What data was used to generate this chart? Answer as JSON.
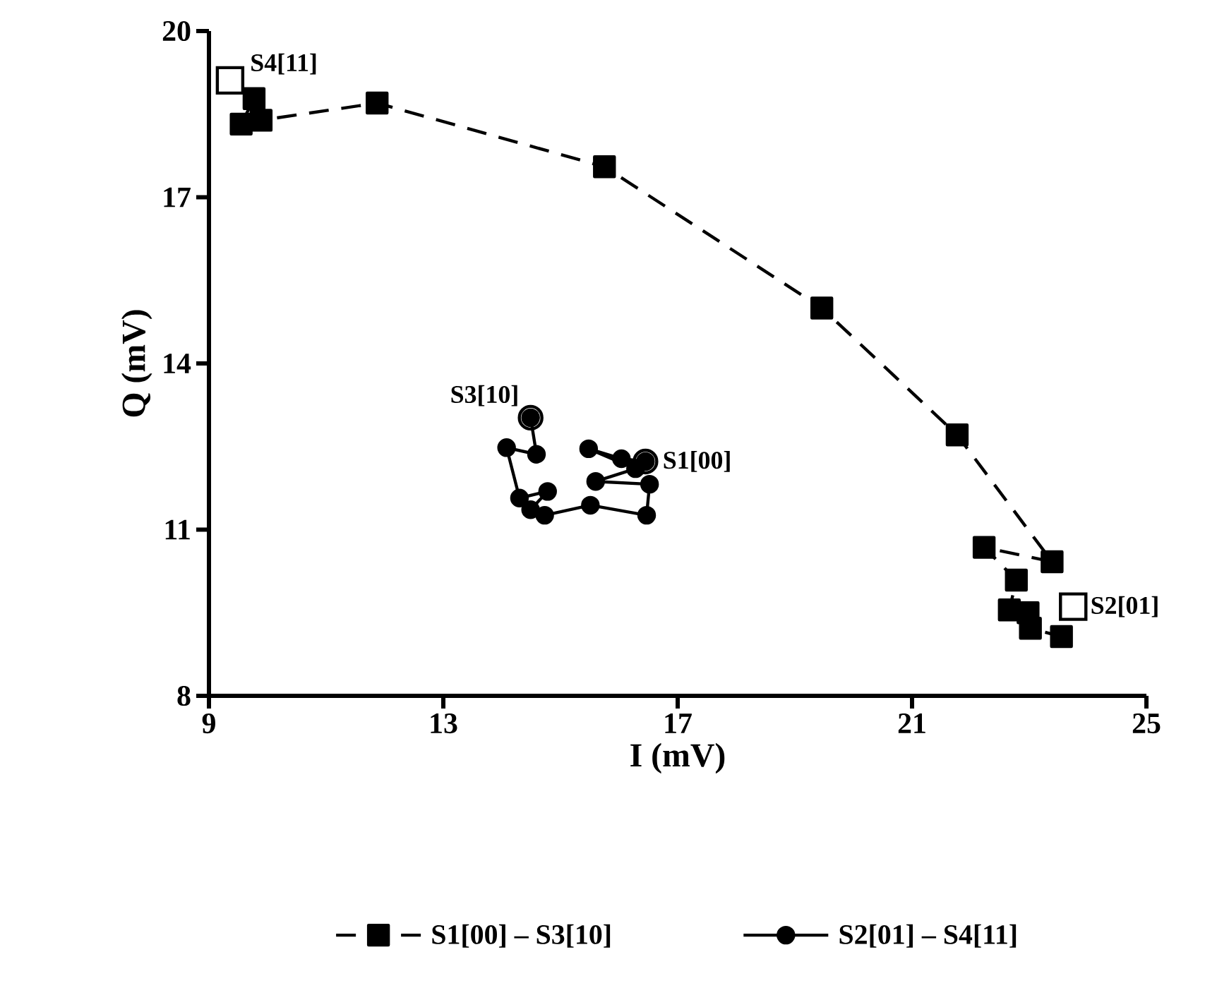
{
  "chart_data": {
    "type": "line",
    "xlabel": "I (mV)",
    "ylabel": "Q (mV)",
    "xlim": [
      9,
      25
    ],
    "xticks": [
      9,
      13,
      17,
      21,
      25
    ],
    "ylim": [
      8,
      20
    ],
    "yticks": [
      8,
      11,
      14,
      17,
      20
    ],
    "grid": false,
    "legend": "bottom",
    "series": [
      {
        "name": "S1[00] – S3[10]",
        "type": "line",
        "color": "#000000",
        "marker": "square",
        "line_style": "dashed",
        "x": [
          9.77,
          9.55,
          9.89,
          11.87,
          15.75,
          19.46,
          21.77,
          23.39,
          22.23,
          22.78,
          22.66,
          22.98,
          23.02,
          23.55
        ],
        "values": [
          18.78,
          18.32,
          18.39,
          18.7,
          17.55,
          15.0,
          12.71,
          10.42,
          10.68,
          10.09,
          9.55,
          9.5,
          9.22,
          9.07
        ]
      },
      {
        "name": "S2[01] – S4[11]",
        "type": "line",
        "color": "#000000",
        "marker": "circle",
        "line_style": "solid",
        "x": [
          16.45,
          16.04,
          15.48,
          16.28,
          15.6,
          16.52,
          16.47,
          15.51,
          14.73,
          14.49,
          14.78,
          14.3,
          14.08,
          14.59,
          14.49
        ],
        "values": [
          12.23,
          12.28,
          12.46,
          12.1,
          11.87,
          11.82,
          11.26,
          11.44,
          11.26,
          11.36,
          11.69,
          11.57,
          12.48,
          12.36,
          13.02
        ]
      },
      {
        "type": "scatter",
        "color": "#000000",
        "marker": "square",
        "x": [
          9.36,
          23.75
        ],
        "values": [
          19.11,
          9.61
        ]
      },
      {
        "type": "scatter",
        "color": "#000000",
        "marker": "circle",
        "x": [
          16.45,
          14.49
        ],
        "values": [
          12.23,
          13.02
        ]
      }
    ],
    "annotations": [
      {
        "text": "S4[11]",
        "x": 9.36,
        "y": 19.11
      },
      {
        "text": "S3[10]",
        "x": 14.49,
        "y": 13.02
      },
      {
        "text": "S1[00]",
        "x": 16.45,
        "y": 12.23
      },
      {
        "text": "S2[01]",
        "x": 23.75,
        "y": 9.61
      }
    ]
  }
}
